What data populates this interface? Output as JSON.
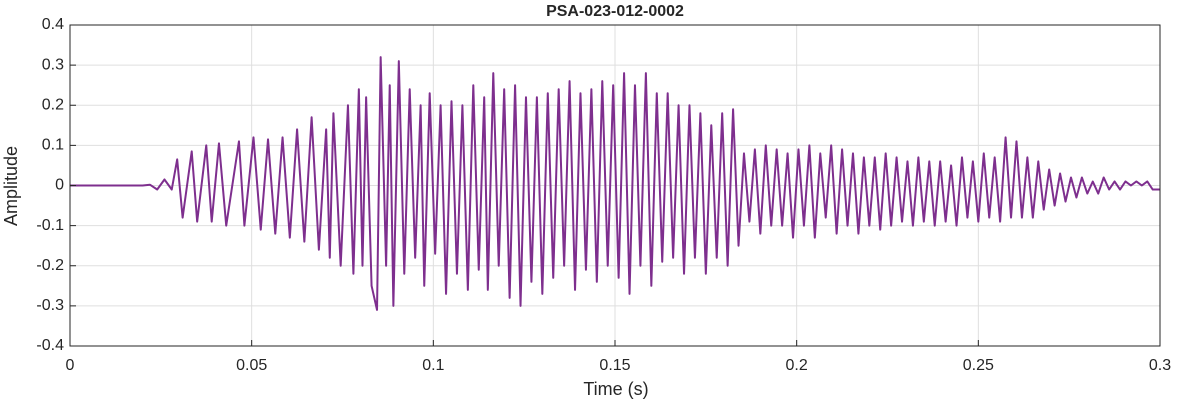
{
  "chart_data": {
    "type": "line",
    "title": "PSA-023-012-0002",
    "x_label": "Time (s)",
    "y_label": "Amplitude",
    "xlim": [
      0,
      0.3
    ],
    "xticks": [
      0,
      0.05,
      0.1,
      0.15,
      0.2,
      0.25,
      0.3
    ],
    "ylim": [
      -0.4,
      0.4
    ],
    "yticks": [
      -0.4,
      -0.3,
      -0.2,
      -0.1,
      0,
      0.1,
      0.2,
      0.3,
      0.4
    ],
    "grid": true,
    "x": [
      0,
      0.02,
      0.022,
      0.024,
      0.026,
      0.028,
      0.0295,
      0.031,
      0.0335,
      0.035,
      0.0375,
      0.039,
      0.041,
      0.043,
      0.0465,
      0.048,
      0.0505,
      0.0525,
      0.0545,
      0.0565,
      0.0585,
      0.0605,
      0.0625,
      0.0645,
      0.0665,
      0.0685,
      0.0705,
      0.0715,
      0.0725,
      0.0745,
      0.0765,
      0.078,
      0.0795,
      0.0805,
      0.0815,
      0.083,
      0.0845,
      0.0855,
      0.087,
      0.088,
      0.089,
      0.0905,
      0.092,
      0.0935,
      0.095,
      0.0965,
      0.0975,
      0.099,
      0.1005,
      0.102,
      0.1035,
      0.105,
      0.1065,
      0.108,
      0.1095,
      0.111,
      0.1125,
      0.114,
      0.115,
      0.1165,
      0.118,
      0.1195,
      0.121,
      0.1225,
      0.124,
      0.1255,
      0.127,
      0.1285,
      0.13,
      0.1315,
      0.133,
      0.1345,
      0.136,
      0.1375,
      0.139,
      0.1405,
      0.142,
      0.1435,
      0.145,
      0.1465,
      0.148,
      0.1495,
      0.151,
      0.1525,
      0.154,
      0.1555,
      0.157,
      0.1585,
      0.16,
      0.1615,
      0.163,
      0.1645,
      0.166,
      0.1675,
      0.169,
      0.1705,
      0.172,
      0.1735,
      0.175,
      0.1765,
      0.178,
      0.1795,
      0.181,
      0.1825,
      0.184,
      0.1855,
      0.187,
      0.1885,
      0.19,
      0.1915,
      0.193,
      0.1945,
      0.196,
      0.1975,
      0.199,
      0.2005,
      0.202,
      0.2035,
      0.205,
      0.2065,
      0.208,
      0.2095,
      0.211,
      0.2125,
      0.214,
      0.2155,
      0.217,
      0.2185,
      0.22,
      0.2215,
      0.223,
      0.2245,
      0.226,
      0.2275,
      0.229,
      0.2305,
      0.232,
      0.2335,
      0.235,
      0.2365,
      0.238,
      0.2395,
      0.241,
      0.2425,
      0.244,
      0.2455,
      0.247,
      0.2485,
      0.25,
      0.2515,
      0.253,
      0.2545,
      0.256,
      0.2575,
      0.259,
      0.2605,
      0.262,
      0.2635,
      0.265,
      0.2665,
      0.268,
      0.2695,
      0.271,
      0.2725,
      0.274,
      0.2755,
      0.277,
      0.2785,
      0.28,
      0.2815,
      0.283,
      0.2845,
      0.286,
      0.2875,
      0.289,
      0.2905,
      0.292,
      0.2935,
      0.295,
      0.2965,
      0.298,
      0.3
    ],
    "series": [
      {
        "color": "#7e2f8e",
        "values": [
          0,
          0,
          0.002,
          -0.01,
          0.015,
          -0.01,
          0.065,
          -0.08,
          0.085,
          -0.09,
          0.1,
          -0.09,
          0.105,
          -0.1,
          0.11,
          -0.1,
          0.12,
          -0.11,
          0.115,
          -0.12,
          0.12,
          -0.13,
          0.14,
          -0.14,
          0.17,
          -0.16,
          0.14,
          -0.18,
          0.18,
          -0.2,
          0.2,
          -0.22,
          0.24,
          -0.2,
          0.22,
          -0.25,
          -0.31,
          0.32,
          -0.2,
          0.25,
          -0.3,
          0.31,
          -0.22,
          0.24,
          -0.18,
          0.2,
          -0.25,
          0.23,
          -0.17,
          0.2,
          -0.27,
          0.21,
          -0.22,
          0.2,
          -0.26,
          0.25,
          -0.21,
          0.22,
          -0.26,
          0.28,
          -0.2,
          0.24,
          -0.28,
          0.25,
          -0.3,
          0.22,
          -0.24,
          0.22,
          -0.27,
          0.23,
          -0.23,
          0.24,
          -0.2,
          0.26,
          -0.26,
          0.23,
          -0.21,
          0.24,
          -0.24,
          0.26,
          -0.2,
          0.25,
          -0.23,
          0.28,
          -0.27,
          0.25,
          -0.2,
          0.28,
          -0.25,
          0.23,
          -0.19,
          0.23,
          -0.18,
          0.2,
          -0.22,
          0.2,
          -0.18,
          0.18,
          -0.22,
          0.15,
          -0.18,
          0.18,
          -0.2,
          0.19,
          -0.15,
          0.08,
          -0.09,
          0.09,
          -0.12,
          0.1,
          -0.1,
          0.09,
          -0.1,
          0.08,
          -0.13,
          0.09,
          -0.1,
          0.1,
          -0.13,
          0.08,
          -0.08,
          0.1,
          -0.12,
          0.09,
          -0.1,
          0.08,
          -0.12,
          0.07,
          -0.1,
          0.07,
          -0.11,
          0.08,
          -0.1,
          0.07,
          -0.09,
          0.06,
          -0.1,
          0.07,
          -0.09,
          0.06,
          -0.1,
          0.06,
          -0.09,
          0.05,
          -0.1,
          0.07,
          -0.08,
          0.06,
          -0.09,
          0.08,
          -0.08,
          0.07,
          -0.09,
          0.12,
          -0.08,
          0.11,
          -0.08,
          0.07,
          -0.08,
          0.06,
          -0.06,
          0.04,
          -0.05,
          0.03,
          -0.04,
          0.02,
          -0.03,
          0.02,
          -0.02,
          0.01,
          -0.02,
          0.02,
          -0.01,
          0.01,
          -0.01,
          0.01,
          0,
          0.01,
          0,
          0.01,
          -0.01,
          -0.01
        ]
      }
    ]
  }
}
